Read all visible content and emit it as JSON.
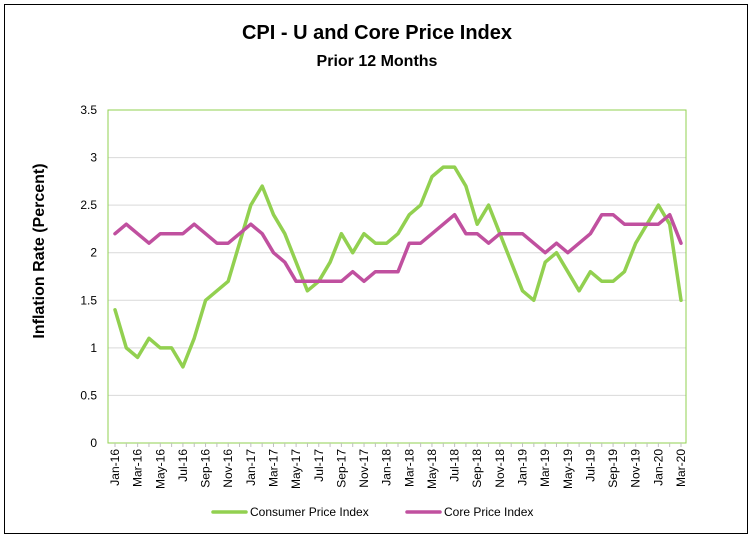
{
  "chart_data": {
    "type": "line",
    "title": "CPI - U and Core Price Index",
    "subtitle": "Prior 12 Months",
    "ylabel": "Inflation Rate (Percent)",
    "xlabel": "",
    "ylim": [
      0,
      3.5
    ],
    "yticks": [
      "0",
      "0.5",
      "1",
      "1.5",
      "2",
      "2.5",
      "3",
      "3.5"
    ],
    "grid": "horizontal",
    "legend_position": "bottom",
    "x": [
      "Jan-16",
      "Feb-16",
      "Mar-16",
      "Apr-16",
      "May-16",
      "Jun-16",
      "Jul-16",
      "Aug-16",
      "Sep-16",
      "Oct-16",
      "Nov-16",
      "Dec-16",
      "Jan-17",
      "Feb-17",
      "Mar-17",
      "Apr-17",
      "May-17",
      "Jun-17",
      "Jul-17",
      "Aug-17",
      "Sep-17",
      "Oct-17",
      "Nov-17",
      "Dec-17",
      "Jan-18",
      "Feb-18",
      "Mar-18",
      "Apr-18",
      "May-18",
      "Jun-18",
      "Jul-18",
      "Aug-18",
      "Sep-18",
      "Oct-18",
      "Nov-18",
      "Dec-18",
      "Jan-19",
      "Feb-19",
      "Mar-19",
      "Apr-19",
      "May-19",
      "Jun-19",
      "Jul-19",
      "Aug-19",
      "Sep-19",
      "Oct-19",
      "Nov-19",
      "Dec-19",
      "Jan-20",
      "Feb-20",
      "Mar-20"
    ],
    "xticks": [
      "Jan-16",
      "Mar-16",
      "May-16",
      "Jul-16",
      "Sep-16",
      "Nov-16",
      "Jan-17",
      "Mar-17",
      "May-17",
      "Jul-17",
      "Sep-17",
      "Nov-17",
      "Jan-18",
      "Mar-18",
      "May-18",
      "Jul-18",
      "Sep-18",
      "Nov-18",
      "Jan-19",
      "Mar-19",
      "May-19",
      "Jul-19",
      "Sep-19",
      "Nov-19",
      "Jan-20",
      "Mar-20"
    ],
    "series": [
      {
        "name": "Consumer Price Index",
        "color": "#92D050",
        "values": [
          1.4,
          1.0,
          0.9,
          1.1,
          1.0,
          1.0,
          0.8,
          1.1,
          1.5,
          1.6,
          1.7,
          2.1,
          2.5,
          2.7,
          2.4,
          2.2,
          1.9,
          1.6,
          1.7,
          1.9,
          2.2,
          2.0,
          2.2,
          2.1,
          2.1,
          2.2,
          2.4,
          2.5,
          2.8,
          2.9,
          2.9,
          2.7,
          2.3,
          2.5,
          2.2,
          1.9,
          1.6,
          1.5,
          1.9,
          2.0,
          1.8,
          1.6,
          1.8,
          1.7,
          1.7,
          1.8,
          2.1,
          2.3,
          2.5,
          2.3,
          1.5
        ]
      },
      {
        "name": "Core Price Index",
        "color": "#C0509F",
        "values": [
          2.2,
          2.3,
          2.2,
          2.1,
          2.2,
          2.2,
          2.2,
          2.3,
          2.2,
          2.1,
          2.1,
          2.2,
          2.3,
          2.2,
          2.0,
          1.9,
          1.7,
          1.7,
          1.7,
          1.7,
          1.7,
          1.8,
          1.7,
          1.8,
          1.8,
          1.8,
          2.1,
          2.1,
          2.2,
          2.3,
          2.4,
          2.2,
          2.2,
          2.1,
          2.2,
          2.2,
          2.2,
          2.1,
          2.0,
          2.1,
          2.0,
          2.1,
          2.2,
          2.4,
          2.4,
          2.3,
          2.3,
          2.3,
          2.3,
          2.4,
          2.1
        ]
      }
    ],
    "plot_border_color": "#92D050",
    "gridline_color": "#D9D9D9"
  }
}
